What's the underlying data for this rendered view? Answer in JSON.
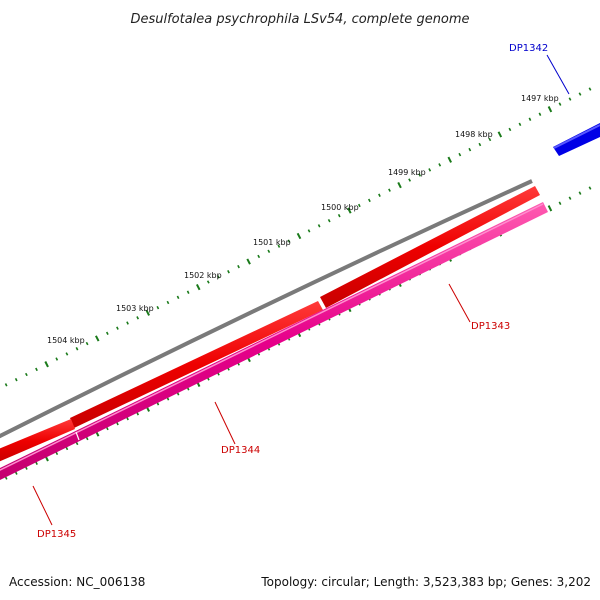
{
  "title": "Desulfotalea psychrophila LSv54, complete genome",
  "footer": {
    "accession": "Accession: NC_006138",
    "summary": "Topology: circular; Length: 3,523,383 bp; Genes: 3,202"
  },
  "colors": {
    "backbone": "#7a7a7a",
    "tick": "#1a7a1a",
    "forward_gene": "#e60000",
    "reverse_gene": "#e0007a",
    "highlight_gene": "#0000e0",
    "label_red": "#cc0000",
    "label_blue": "#0000cc"
  },
  "scale": {
    "unit": "kbp",
    "labels": [
      "1497 kbp",
      "1498 kbp",
      "1499 kbp",
      "1500 kbp",
      "1501 kbp",
      "1502 kbp",
      "1503 kbp",
      "1504 kbp"
    ]
  },
  "genes": [
    {
      "id": "DP1342",
      "strand": "forward",
      "color": "blue"
    },
    {
      "id": "DP1343",
      "strand": "reverse",
      "color": "red"
    },
    {
      "id": "DP1344",
      "strand": "reverse",
      "color": "red"
    },
    {
      "id": "DP1345",
      "strand": "reverse",
      "color": "red"
    }
  ]
}
